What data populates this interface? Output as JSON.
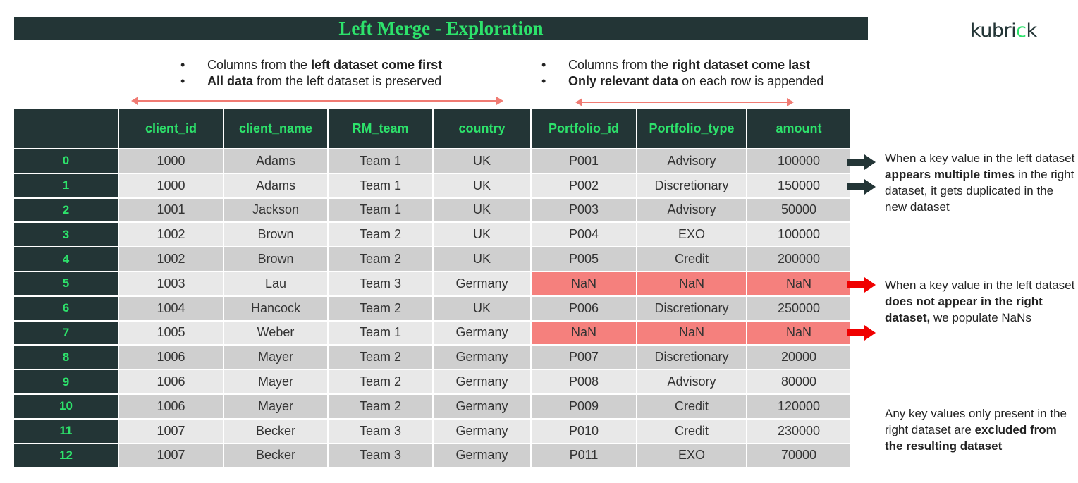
{
  "title": "Left Merge - Exploration",
  "logo": {
    "text_main": "kubri",
    "text_accent": "c",
    "text_end": "k"
  },
  "bullets_left": [
    {
      "pre": "Columns from the ",
      "bold": "left dataset come first",
      "post": ""
    },
    {
      "pre": "",
      "bold": "All data",
      "post": " from the left dataset is preserved"
    }
  ],
  "bullets_right": [
    {
      "pre": "Columns from the ",
      "bold": "right dataset come last",
      "post": ""
    },
    {
      "pre": "",
      "bold": "Only relevant data",
      "post": " on each row is appended"
    }
  ],
  "table": {
    "headers": [
      "",
      "client_id",
      "client_name",
      "RM_team",
      "country",
      "Portfolio_id",
      "Portfolio_type",
      "amount"
    ],
    "rows": [
      [
        "0",
        "1000",
        "Adams",
        "Team 1",
        "UK",
        "P001",
        "Advisory",
        "100000"
      ],
      [
        "1",
        "1000",
        "Adams",
        "Team 1",
        "UK",
        "P002",
        "Discretionary",
        "150000"
      ],
      [
        "2",
        "1001",
        "Jackson",
        "Team 1",
        "UK",
        "P003",
        "Advisory",
        "50000"
      ],
      [
        "3",
        "1002",
        "Brown",
        "Team 2",
        "UK",
        "P004",
        "EXO",
        "100000"
      ],
      [
        "4",
        "1002",
        "Brown",
        "Team 2",
        "UK",
        "P005",
        "Credit",
        "200000"
      ],
      [
        "5",
        "1003",
        "Lau",
        "Team 3",
        "Germany",
        "NaN",
        "NaN",
        "NaN"
      ],
      [
        "6",
        "1004",
        "Hancock",
        "Team 2",
        "UK",
        "P006",
        "Discretionary",
        "250000"
      ],
      [
        "7",
        "1005",
        "Weber",
        "Team 1",
        "Germany",
        "NaN",
        "NaN",
        "NaN"
      ],
      [
        "8",
        "1006",
        "Mayer",
        "Team 2",
        "Germany",
        "P007",
        "Discretionary",
        "20000"
      ],
      [
        "9",
        "1006",
        "Mayer",
        "Team 2",
        "Germany",
        "P008",
        "Advisory",
        "80000"
      ],
      [
        "10",
        "1006",
        "Mayer",
        "Team 2",
        "Germany",
        "P009",
        "Credit",
        "120000"
      ],
      [
        "11",
        "1007",
        "Becker",
        "Team 3",
        "Germany",
        "P010",
        "Credit",
        "230000"
      ],
      [
        "12",
        "1007",
        "Becker",
        "Team 3",
        "Germany",
        "P011",
        "EXO",
        "70000"
      ]
    ]
  },
  "notes": {
    "duplicates": {
      "a": "When a key value in the left dataset ",
      "b": "appears multiple times",
      "c": " in the right dataset, it gets duplicated in the new dataset"
    },
    "nans": {
      "a": "When a key value in the left dataset ",
      "b": "does not appear in the right dataset,",
      "c": " we populate NaNs"
    },
    "excluded": {
      "a": "Any key values only present in the right dataset are ",
      "b": "excluded from the resulting dataset",
      "c": ""
    }
  },
  "colors": {
    "dark": "#233536",
    "accent_green": "#2de26b",
    "nan_fill": "#f5807d",
    "arrow_red": "#f00000",
    "span_arrow": "#f07b73"
  }
}
